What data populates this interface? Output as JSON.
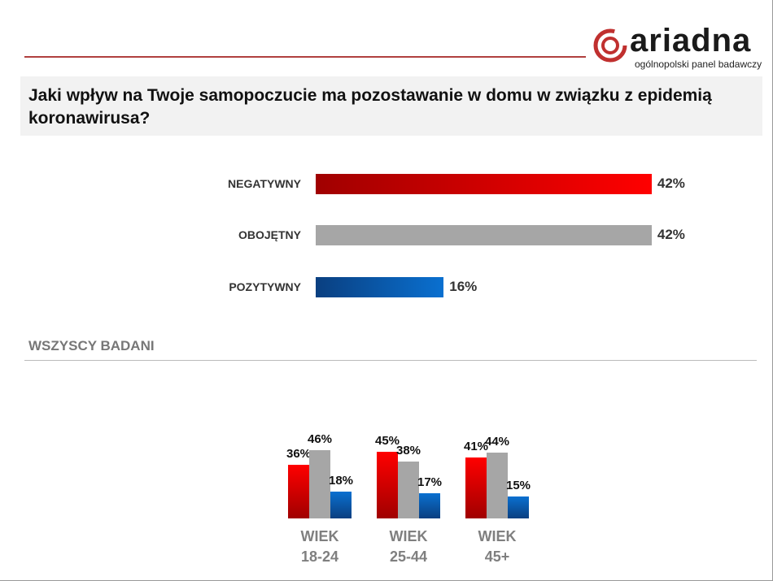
{
  "logo": {
    "name": "ariadna",
    "tagline": "ogólnopolski panel badawczy"
  },
  "question": "Jaki wpływ na Twoje samopoczucie ma pozostawanie w domu w związku z epidemią koronawirusa?",
  "section_label": "WSZYSCY BADANI",
  "colors": {
    "negatywny": "#e00000",
    "obojetny": "#a6a6a6",
    "pozytywny": "#0a63b8",
    "accent": "#b0403f"
  },
  "chart_data": [
    {
      "type": "bar",
      "orientation": "horizontal",
      "categories": [
        "NEGATYWNY",
        "OBOJĘTNY",
        "POZYTYWNY"
      ],
      "values": [
        42,
        42,
        16
      ],
      "value_labels": [
        "42%",
        "42%",
        "16%"
      ]
    },
    {
      "type": "bar",
      "orientation": "vertical",
      "categories": [
        [
          "WIEK",
          "18-24"
        ],
        [
          "WIEK",
          "25-44"
        ],
        [
          "WIEK",
          "45+"
        ]
      ],
      "series": [
        {
          "values": [
            36,
            45,
            41
          ],
          "labels": [
            "36%",
            "45%",
            "41%"
          ]
        },
        {
          "values": [
            46,
            38,
            44
          ],
          "labels": [
            "46%",
            "38%",
            "44%"
          ]
        },
        {
          "values": [
            18,
            17,
            15
          ],
          "labels": [
            "18%",
            "17%",
            "15%"
          ]
        }
      ]
    }
  ]
}
